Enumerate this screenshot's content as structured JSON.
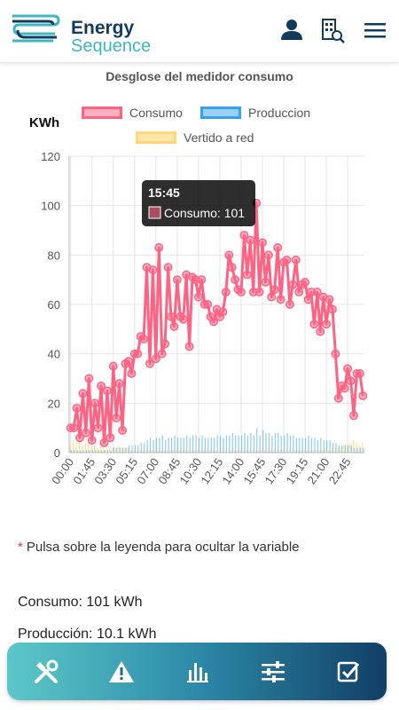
{
  "header": {
    "brand_line1": "Energy",
    "brand_line2": "Sequence",
    "icons": [
      "user-icon",
      "building-search-icon",
      "menu-icon"
    ]
  },
  "chart_title": "Desglose del medidor consumo",
  "colors": {
    "consumo": "#ff6384",
    "produccion": "#36a2eb",
    "vertido": "#ffcd56",
    "brand_dark": "#123a5c",
    "brand_teal": "#3bb7bd"
  },
  "chart_data": {
    "type": "line",
    "title": "Desglose del medidor consumo",
    "ylabel": "KWh",
    "ylim": [
      0,
      120
    ],
    "yticks": [
      0,
      20,
      40,
      60,
      80,
      100,
      120
    ],
    "x_tick_labels": [
      "00:00",
      "01:45",
      "03:30",
      "05:15",
      "07:00",
      "08:45",
      "10:30",
      "12:15",
      "14:00",
      "15:45",
      "17:30",
      "19:15",
      "21:00",
      "22:45"
    ],
    "series": [
      {
        "name": "Consumo",
        "type": "line",
        "values": [
          10,
          10,
          18,
          6,
          24,
          8,
          30,
          5,
          20,
          10,
          27,
          4,
          25,
          6,
          35,
          14,
          28,
          9,
          36,
          37,
          32,
          40,
          40,
          47,
          46,
          75,
          36,
          74,
          38,
          83,
          40,
          44,
          75,
          55,
          51,
          70,
          55,
          54,
          72,
          43,
          71,
          70,
          63,
          70,
          60,
          60,
          55,
          53,
          58,
          55,
          57,
          65,
          80,
          75,
          70,
          66,
          65,
          88,
          72,
          86,
          65,
          101,
          65,
          85,
          69,
          80,
          63,
          66,
          83,
          62,
          77,
          78,
          60,
          68,
          78,
          65,
          68,
          69,
          62,
          65,
          52,
          65,
          49,
          63,
          52,
          62,
          58,
          40,
          22,
          27,
          26,
          34,
          29,
          15,
          32,
          32,
          23
        ]
      },
      {
        "name": "Produccion",
        "type": "bar",
        "values": [
          1,
          1,
          1,
          1,
          1,
          1,
          1,
          1,
          1,
          1,
          1,
          1,
          1,
          1,
          2,
          2,
          2,
          2,
          2,
          3,
          3,
          3,
          3,
          4,
          4,
          5,
          6,
          5,
          6,
          6,
          7,
          5,
          6,
          6,
          7,
          6,
          6,
          6,
          7,
          6,
          7,
          7,
          6,
          7,
          6,
          6,
          6,
          6,
          7,
          7,
          6,
          7,
          7,
          8,
          7,
          7,
          7,
          8,
          7,
          8,
          7,
          10,
          7,
          9,
          8,
          8,
          7,
          8,
          8,
          7,
          7,
          8,
          7,
          7,
          6,
          6,
          6,
          6,
          7,
          6,
          6,
          5,
          6,
          5,
          5,
          5,
          4,
          4,
          3,
          3,
          3,
          3,
          3,
          2,
          2,
          2,
          2
        ]
      },
      {
        "name": "Vertido a red",
        "type": "bar",
        "values": [
          3,
          5,
          4,
          6,
          3,
          4,
          5,
          2,
          3,
          2,
          3,
          2,
          3,
          2,
          2,
          2,
          3,
          2,
          2,
          2,
          1,
          1,
          1,
          1,
          1,
          1,
          1,
          1,
          1,
          1,
          1,
          1,
          1,
          1,
          1,
          1,
          1,
          1,
          1,
          1,
          1,
          1,
          1,
          1,
          1,
          1,
          1,
          1,
          1,
          1,
          1,
          1,
          1,
          1,
          1,
          1,
          1,
          1,
          1,
          1,
          1,
          1,
          1,
          1,
          1,
          1,
          1,
          1,
          1,
          1,
          1,
          1,
          1,
          1,
          1,
          1,
          1,
          1,
          1,
          1,
          1,
          1,
          1,
          1,
          1,
          1,
          2,
          2,
          2,
          2,
          3,
          3,
          4,
          5,
          4,
          3,
          4
        ]
      }
    ],
    "legend_placement": "top",
    "grid": true,
    "tooltip": {
      "time": "15:45",
      "label": "Consumo: 101"
    }
  },
  "legend": {
    "consumo": "Consumo",
    "produccion": "Produccion",
    "vertido": "Vertido a red"
  },
  "note": "Pulsa sobre la leyenda para ocultar la variable",
  "stats": {
    "consumo": "Consumo: 101 kWh",
    "produccion": "Producción: 10.1 kWh"
  },
  "nav": [
    "tools-icon",
    "warning-icon",
    "bar-chart-icon",
    "sliders-icon",
    "checkbox-icon"
  ]
}
